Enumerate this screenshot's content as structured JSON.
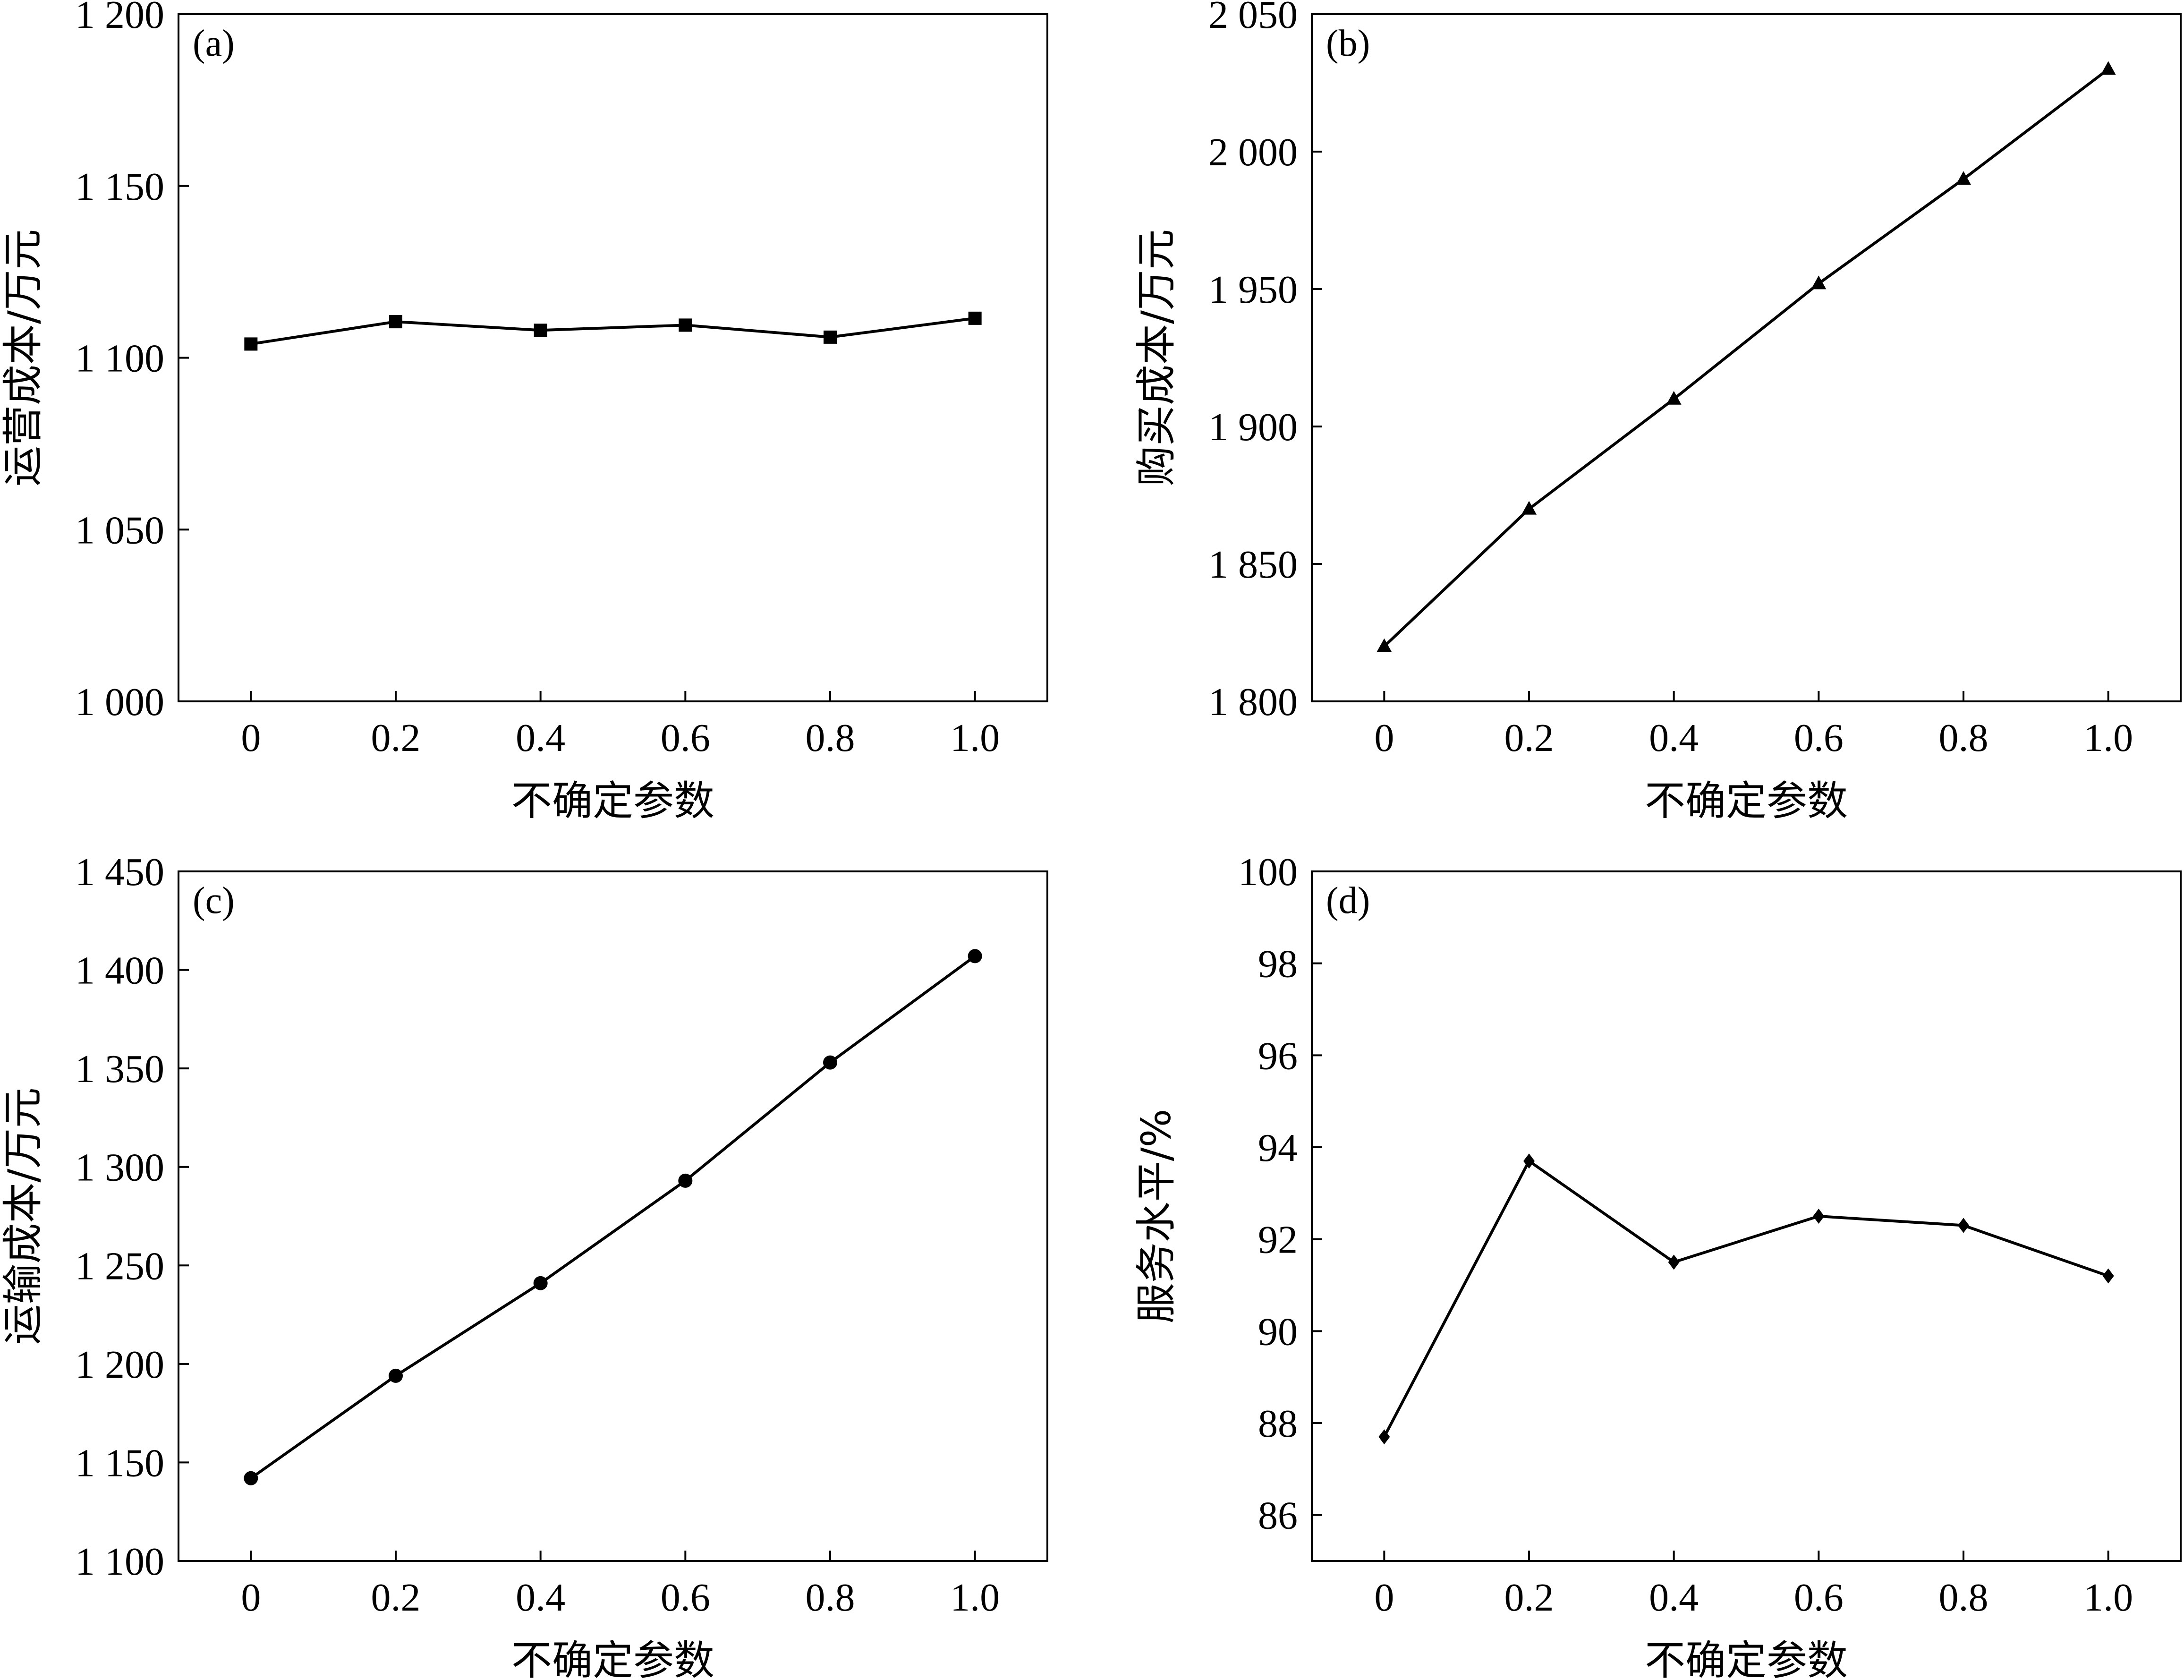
{
  "chart_data": [
    {
      "type": "line",
      "panel": "(a)",
      "marker": "square",
      "x": [
        0,
        0.2,
        0.4,
        0.6,
        0.8,
        1.0
      ],
      "x_tick_labels": [
        "0",
        "0.2",
        "0.4",
        "0.6",
        "0.8",
        "1.0"
      ],
      "xlim": [
        -0.1,
        1.1
      ],
      "xlabel": "不确定参数",
      "ylabel": "运营成本/万元",
      "ylim": [
        1000,
        1200
      ],
      "y_ticks": [
        1000,
        1050,
        1100,
        1150,
        1200
      ],
      "y_tick_labels": [
        "1 000",
        "1 050",
        "1 100",
        "1 150",
        "1 200"
      ],
      "values": [
        1104,
        1110.5,
        1108,
        1109.5,
        1106,
        1111.5
      ]
    },
    {
      "type": "line",
      "panel": "(b)",
      "marker": "triangle",
      "x": [
        0,
        0.2,
        0.4,
        0.6,
        0.8,
        1.0
      ],
      "x_tick_labels": [
        "0",
        "0.2",
        "0.4",
        "0.6",
        "0.8",
        "1.0"
      ],
      "xlim": [
        -0.1,
        1.1
      ],
      "xlabel": "不确定参数",
      "ylabel": "购买成本/万元",
      "ylim": [
        1800,
        2050
      ],
      "y_ticks": [
        1800,
        1850,
        1900,
        1950,
        2000,
        2050
      ],
      "y_tick_labels": [
        "1 800",
        "1 850",
        "1 900",
        "1 950",
        "2 000",
        "2 050"
      ],
      "values": [
        1820,
        1870,
        1910,
        1952,
        1990,
        2030
      ]
    },
    {
      "type": "line",
      "panel": "(c)",
      "marker": "circle",
      "x": [
        0,
        0.2,
        0.4,
        0.6,
        0.8,
        1.0
      ],
      "x_tick_labels": [
        "0",
        "0.2",
        "0.4",
        "0.6",
        "0.8",
        "1.0"
      ],
      "xlim": [
        -0.1,
        1.1
      ],
      "xlabel": "不确定参数",
      "ylabel": "运输成本/万元",
      "ylim": [
        1100,
        1450
      ],
      "y_ticks": [
        1100,
        1150,
        1200,
        1250,
        1300,
        1350,
        1400,
        1450
      ],
      "y_tick_labels": [
        "1 100",
        "1 150",
        "1 200",
        "1 250",
        "1 300",
        "1 350",
        "1 400",
        "1 450"
      ],
      "values": [
        1142,
        1194,
        1241,
        1293,
        1353,
        1407
      ]
    },
    {
      "type": "line",
      "panel": "(d)",
      "marker": "diamond",
      "x": [
        0,
        0.2,
        0.4,
        0.6,
        0.8,
        1.0
      ],
      "x_tick_labels": [
        "0",
        "0.2",
        "0.4",
        "0.6",
        "0.8",
        "1.0"
      ],
      "xlim": [
        -0.1,
        1.1
      ],
      "xlabel": "不确定参数",
      "ylabel": "服务水平/%",
      "ylim": [
        85,
        100
      ],
      "y_ticks": [
        86,
        88,
        90,
        92,
        94,
        96,
        98,
        100
      ],
      "y_tick_labels": [
        "86",
        "88",
        "90",
        "92",
        "94",
        "96",
        "98",
        "100"
      ],
      "values": [
        87.7,
        93.7,
        91.5,
        92.5,
        92.3,
        91.2
      ]
    }
  ]
}
